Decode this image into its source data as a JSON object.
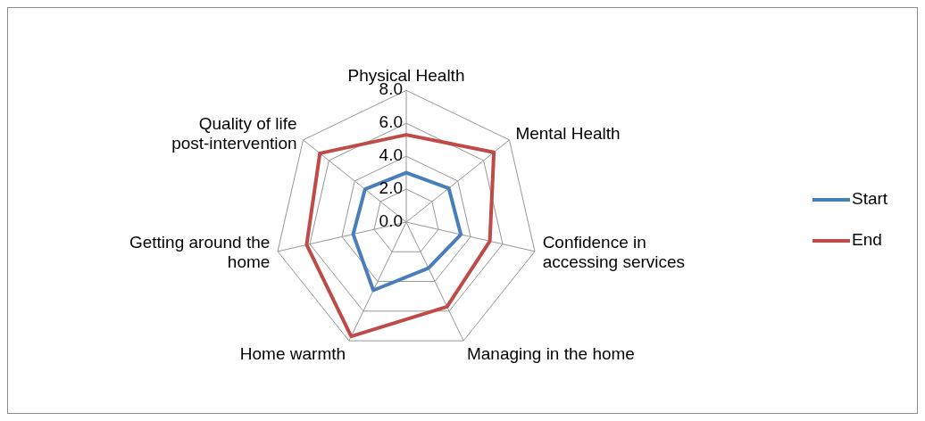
{
  "chart_data": {
    "type": "radar",
    "categories": [
      "Physical Health",
      "Mental Health",
      "Confidence in accessing services",
      "Managing in the home",
      "Home warmth",
      "Getting around the home",
      "Quality of life post-intervention"
    ],
    "series": [
      {
        "name": "Start",
        "color": "#4a7ebb",
        "values": [
          3.0,
          3.3,
          3.4,
          3.1,
          4.6,
          3.3,
          3.2
        ]
      },
      {
        "name": "End",
        "color": "#be4b48",
        "values": [
          5.3,
          6.8,
          5.2,
          5.7,
          7.7,
          6.2,
          6.7
        ]
      }
    ],
    "ylim": [
      0,
      8
    ],
    "yticks": [
      {
        "value": 0,
        "label": "0.0"
      },
      {
        "value": 2,
        "label": "2.0"
      },
      {
        "value": 4,
        "label": "4.0"
      },
      {
        "value": 6,
        "label": "6.0"
      },
      {
        "value": 8,
        "label": "8.0"
      }
    ],
    "grid": true,
    "legend": "right"
  }
}
